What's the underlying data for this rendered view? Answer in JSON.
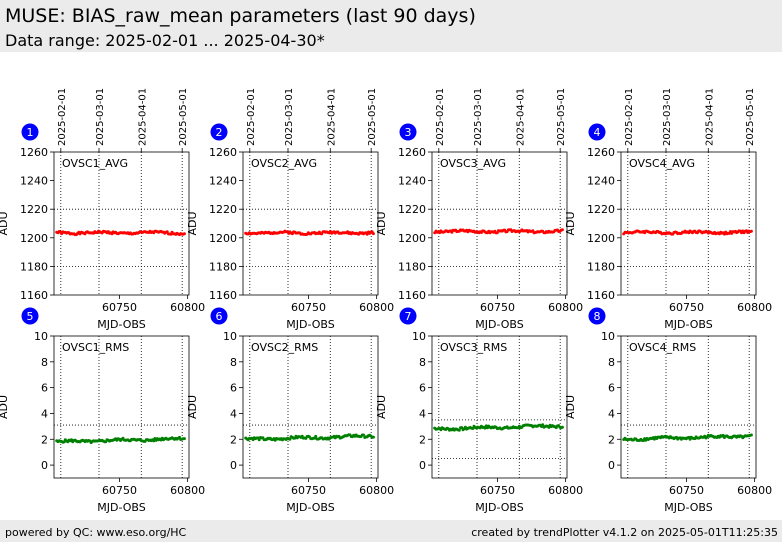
{
  "header": {
    "title": "MUSE: BIAS_raw_mean parameters (last 90 days)",
    "subtitle": "Data range: 2025-02-01 ... 2025-04-30*"
  },
  "footer": {
    "left": "powered by QC: www.eso.org/HC",
    "right": "created by trendPlotter v4.1.2 on 2025-05-01T11:25:35"
  },
  "colors": {
    "avg_series": "#ff0000",
    "rms_series": "#008000",
    "marker_badge": "#0000ff"
  },
  "shared_axes": {
    "x_range": [
      60702,
      60801
    ],
    "x_ticks": [
      60750,
      60800
    ],
    "xlabel": "MJD-OBS",
    "ylabel": "ADU",
    "date_ticks_mjd": [
      60707,
      60735,
      60766,
      60796
    ],
    "date_tick_labels": [
      "2025-02-01",
      "2025-03-01",
      "2025-04-01",
      "2025-05-01"
    ]
  },
  "chart_data": [
    {
      "type": "scatter",
      "marker": "1",
      "title": "OVSC1_AVG",
      "ylim": [
        1160,
        1260
      ],
      "yticks": [
        1160,
        1180,
        1200,
        1220,
        1240,
        1260
      ],
      "hlines": [
        1220,
        1180
      ],
      "y_level": 1203.5,
      "noise": 0.8,
      "seed": 1,
      "series": [
        {
          "color": "#ff0000"
        }
      ]
    },
    {
      "type": "scatter",
      "marker": "2",
      "title": "OVSC2_AVG",
      "ylim": [
        1160,
        1260
      ],
      "yticks": [
        1160,
        1180,
        1200,
        1220,
        1240,
        1260
      ],
      "hlines": [
        1220,
        1180
      ],
      "y_level": 1203.5,
      "noise": 0.8,
      "seed": 2,
      "series": [
        {
          "color": "#ff0000"
        }
      ]
    },
    {
      "type": "scatter",
      "marker": "3",
      "title": "OVSC3_AVG",
      "ylim": [
        1160,
        1260
      ],
      "yticks": [
        1160,
        1180,
        1200,
        1220,
        1240,
        1260
      ],
      "hlines": [
        1220,
        1180
      ],
      "y_level": 1204.5,
      "noise": 0.8,
      "seed": 3,
      "series": [
        {
          "color": "#ff0000"
        }
      ]
    },
    {
      "type": "scatter",
      "marker": "4",
      "title": "OVSC4_AVG",
      "ylim": [
        1160,
        1260
      ],
      "yticks": [
        1160,
        1180,
        1200,
        1220,
        1240,
        1260
      ],
      "hlines": [
        1220,
        1180
      ],
      "y_level": 1203.8,
      "noise": 0.8,
      "seed": 4,
      "series": [
        {
          "color": "#ff0000"
        }
      ]
    },
    {
      "type": "scatter",
      "marker": "5",
      "title": "OVSC1_RMS",
      "ylim": [
        -1,
        10
      ],
      "yticks": [
        0,
        2,
        4,
        6,
        8,
        10
      ],
      "hlines": [
        3.1
      ],
      "y_level": 1.8,
      "noise": 0.1,
      "seed": 5,
      "series": [
        {
          "color": "#008000"
        }
      ]
    },
    {
      "type": "scatter",
      "marker": "6",
      "title": "OVSC2_RMS",
      "ylim": [
        -1,
        10
      ],
      "yticks": [
        0,
        2,
        4,
        6,
        8,
        10
      ],
      "hlines": [
        3.1
      ],
      "y_level": 2.0,
      "noise": 0.1,
      "seed": 6,
      "series": [
        {
          "color": "#008000"
        }
      ]
    },
    {
      "type": "scatter",
      "marker": "7",
      "title": "OVSC3_RMS",
      "ylim": [
        -1,
        10
      ],
      "yticks": [
        0,
        2,
        4,
        6,
        8,
        10
      ],
      "hlines": [
        3.5,
        0.5
      ],
      "y_level": 2.8,
      "noise": 0.1,
      "seed": 7,
      "series": [
        {
          "color": "#008000"
        }
      ]
    },
    {
      "type": "scatter",
      "marker": "8",
      "title": "OVSC4_RMS",
      "ylim": [
        -1,
        10
      ],
      "yticks": [
        0,
        2,
        4,
        6,
        8,
        10
      ],
      "hlines": [
        3.1
      ],
      "y_level": 2.0,
      "noise": 0.1,
      "seed": 8,
      "series": [
        {
          "color": "#008000"
        }
      ]
    }
  ]
}
